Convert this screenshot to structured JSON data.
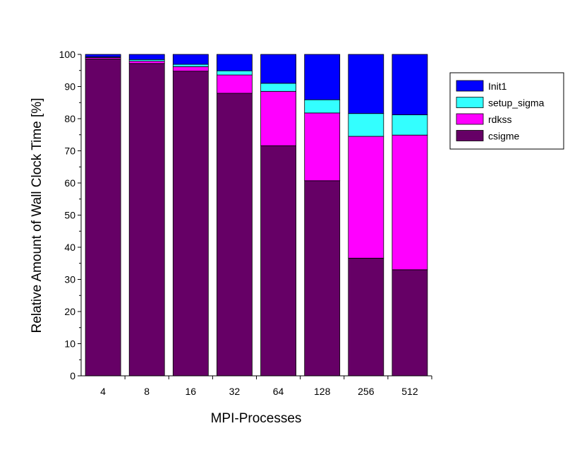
{
  "chart_data": {
    "type": "bar",
    "stacked": true,
    "title": "",
    "xlabel": "MPI-Processes",
    "ylabel": "Relative Amount of Wall Clock Time [%]",
    "categories": [
      "4",
      "8",
      "16",
      "32",
      "64",
      "128",
      "256",
      "512"
    ],
    "ylim": [
      0,
      100
    ],
    "yticks": [
      0,
      10,
      20,
      30,
      40,
      50,
      60,
      70,
      80,
      90,
      100
    ],
    "grid": false,
    "legend_position": "right",
    "series": [
      {
        "name": "csigme",
        "color": "#660066",
        "values": [
          98.6,
          97.2,
          94.8,
          87.9,
          71.6,
          60.7,
          36.6,
          33.0
        ]
      },
      {
        "name": "rdkss",
        "color": "#ff00ff",
        "values": [
          0.4,
          0.7,
          1.4,
          5.7,
          16.9,
          21.1,
          37.9,
          41.9
        ]
      },
      {
        "name": "setup_sigma",
        "color": "#33ffff",
        "values": [
          0.2,
          0.5,
          0.7,
          1.3,
          2.5,
          4.1,
          7.1,
          6.3
        ]
      },
      {
        "name": "Init1",
        "color": "#0000ff",
        "values": [
          0.8,
          1.6,
          3.1,
          5.1,
          9.0,
          14.1,
          18.4,
          18.8
        ]
      }
    ],
    "legend_order": [
      "Init1",
      "setup_sigma",
      "rdkss",
      "csigme"
    ]
  }
}
